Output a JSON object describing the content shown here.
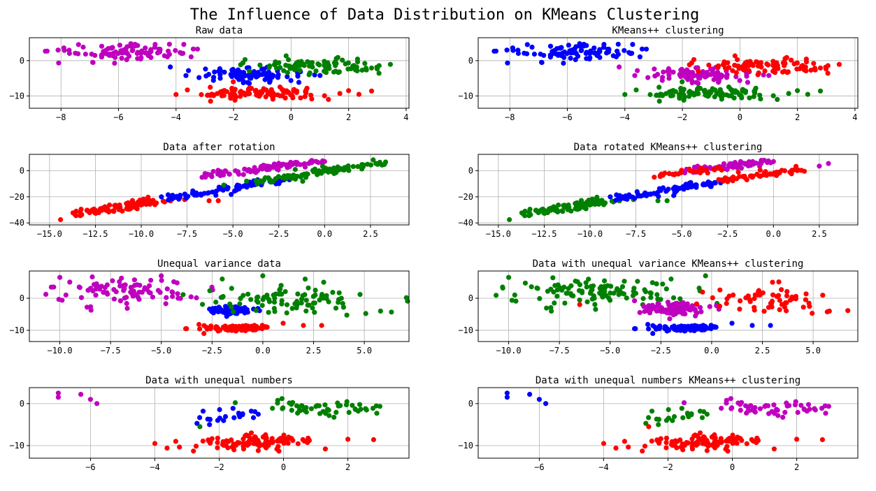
{
  "figure": {
    "title": "The Influence of Data Distribution on KMeans Clustering"
  },
  "colors": {
    "magenta": "#bf00bf",
    "blue": "#0000ff",
    "green": "#008000",
    "red": "#ff0000"
  },
  "chart_data": [
    {
      "type": "scatter",
      "title": "Raw data",
      "xlim": [
        -9.1,
        4.1
      ],
      "ylim": [
        -13.5,
        6.5
      ],
      "xticks": [
        -8,
        -6,
        -4,
        -2,
        0,
        2,
        4
      ],
      "yticks": [
        0,
        -10
      ],
      "grid": true,
      "series": [
        {
          "color": "magenta",
          "center": [
            -5.8,
            2.3
          ],
          "spread": [
            1.2,
            1.3
          ],
          "n": 90,
          "seed": 11,
          "extras": [
            [
              -8.1,
              3.0
            ],
            [
              -7.9,
              3.6
            ],
            [
              -3.8,
              2.0
            ],
            [
              -3.4,
              3.3
            ],
            [
              -4.3,
              1.1
            ]
          ]
        },
        {
          "color": "blue",
          "center": [
            -1.4,
            -3.8
          ],
          "spread": [
            0.9,
            1.0
          ],
          "n": 90,
          "seed": 12,
          "extras": [
            [
              -4.2,
              -1.8
            ],
            [
              -3.2,
              -4.8
            ],
            [
              -2.7,
              -5.6
            ]
          ]
        },
        {
          "color": "green",
          "center": [
            1.0,
            -1.4
          ],
          "spread": [
            1.1,
            1.1
          ],
          "n": 90,
          "seed": 13,
          "extras": [
            [
              -1.6,
              0.3
            ],
            [
              2.8,
              -2.1
            ]
          ]
        },
        {
          "color": "red",
          "center": [
            -1.1,
            -9.3
          ],
          "spread": [
            1.1,
            0.9
          ],
          "n": 100,
          "seed": 14,
          "extras": [
            [
              -4.0,
              -9.6
            ],
            [
              2.0,
              -8.5
            ],
            [
              2.8,
              -8.6
            ],
            [
              1.3,
              -11.0
            ],
            [
              -2.8,
              -11.5
            ]
          ]
        }
      ]
    },
    {
      "type": "scatter",
      "title": "KMeans++ clustering",
      "xlim": [
        -9.1,
        4.1
      ],
      "ylim": [
        -13.5,
        6.5
      ],
      "xticks": [
        -8,
        -6,
        -4,
        -2,
        0,
        2,
        4
      ],
      "yticks": [
        0,
        -10
      ],
      "grid": true,
      "series": [
        {
          "color": "blue",
          "center": [
            -5.8,
            2.3
          ],
          "spread": [
            1.2,
            1.3
          ],
          "n": 90,
          "seed": 11,
          "extras": [
            [
              -8.1,
              3.0
            ],
            [
              -7.9,
              3.6
            ],
            [
              -3.8,
              2.0
            ],
            [
              -3.4,
              3.3
            ],
            [
              -4.3,
              1.1
            ]
          ]
        },
        {
          "color": "magenta",
          "center": [
            -1.4,
            -3.8
          ],
          "spread": [
            0.9,
            1.0
          ],
          "n": 90,
          "seed": 12,
          "extras": [
            [
              -4.2,
              -1.8
            ],
            [
              -3.2,
              -4.8
            ],
            [
              -2.7,
              -5.6
            ]
          ]
        },
        {
          "color": "red",
          "center": [
            1.0,
            -1.4
          ],
          "spread": [
            1.1,
            1.1
          ],
          "n": 90,
          "seed": 13,
          "extras": [
            [
              -1.6,
              0.3
            ],
            [
              2.8,
              -2.1
            ]
          ]
        },
        {
          "color": "green",
          "center": [
            -1.1,
            -9.3
          ],
          "spread": [
            1.1,
            0.9
          ],
          "n": 100,
          "seed": 14,
          "extras": [
            [
              -4.0,
              -9.6
            ],
            [
              2.0,
              -8.5
            ],
            [
              2.8,
              -8.6
            ],
            [
              1.3,
              -11.0
            ],
            [
              -2.8,
              -11.5
            ]
          ]
        }
      ]
    },
    {
      "type": "scatter",
      "title": "Data after rotation",
      "xlim": [
        -16.1,
        4.6
      ],
      "ylim": [
        -41.5,
        12.5
      ],
      "xticks": [
        -15.0,
        -12.5,
        -10.0,
        -7.5,
        -5.0,
        -2.5,
        0.0,
        2.5
      ],
      "yticks": [
        0,
        -20,
        -40
      ],
      "grid": true,
      "series": [
        {
          "color": "red",
          "line": [
            [
              -13.4,
              -33.5
            ],
            [
              -8.6,
              -22.0
            ]
          ],
          "noise": [
            0.4,
            1.4
          ],
          "n": 100,
          "seed": 21,
          "extras": [
            [
              -14.4,
              -37.5
            ],
            [
              -6.3,
              -23.0
            ],
            [
              -5.8,
              -23.0
            ]
          ]
        },
        {
          "color": "blue",
          "line": [
            [
              -8.6,
              -21.0
            ],
            [
              -2.0,
              -6.5
            ]
          ],
          "noise": [
            0.4,
            1.3
          ],
          "n": 90,
          "seed": 22,
          "extras": [
            [
              -8.9,
              -20.0
            ],
            [
              -7.0,
              -17.0
            ]
          ]
        },
        {
          "color": "magenta",
          "line": [
            [
              -6.4,
              -3.5
            ],
            [
              0.0,
              7.5
            ]
          ],
          "noise": [
            0.4,
            1.2
          ],
          "n": 90,
          "seed": 23,
          "extras": [
            [
              -6.5,
              -5.0
            ],
            [
              0.0,
              7.0
            ]
          ]
        },
        {
          "color": "green",
          "line": [
            [
              -3.8,
              -8.5
            ],
            [
              3.0,
              6.0
            ]
          ],
          "noise": [
            0.4,
            1.3
          ],
          "n": 90,
          "seed": 24,
          "extras": [
            [
              2.8,
              5.5
            ],
            [
              -5.5,
              -11.0
            ]
          ]
        }
      ]
    },
    {
      "type": "scatter",
      "title": "Data rotated KMeans++ clustering",
      "xlim": [
        -16.1,
        4.6
      ],
      "ylim": [
        -41.5,
        12.5
      ],
      "xticks": [
        -15.0,
        -12.5,
        -10.0,
        -7.5,
        -5.0,
        -2.5,
        0.0,
        2.5
      ],
      "yticks": [
        0,
        -20,
        -40
      ],
      "grid": true,
      "series": [
        {
          "color": "green",
          "line": [
            [
              -13.4,
              -33.5
            ],
            [
              -8.6,
              -22.0
            ]
          ],
          "noise": [
            0.4,
            1.4
          ],
          "n": 100,
          "seed": 21,
          "extras": [
            [
              -14.4,
              -37.5
            ],
            [
              -6.3,
              -23.0
            ],
            [
              -5.8,
              -23.0
            ]
          ]
        },
        {
          "color": "blue",
          "line": [
            [
              -8.6,
              -21.0
            ],
            [
              -3.0,
              -9.0
            ]
          ],
          "noise": [
            0.4,
            1.3
          ],
          "n": 90,
          "seed": 22,
          "extras": [
            [
              -8.9,
              -20.0
            ],
            [
              -7.0,
              -17.0
            ]
          ]
        },
        {
          "color": "magenta",
          "line": [
            [
              -4.5,
              0.0
            ],
            [
              0.0,
              7.5
            ]
          ],
          "noise": [
            0.4,
            1.2
          ],
          "n": 70,
          "seed": 23,
          "extras": [
            [
              0.0,
              7.0
            ],
            [
              3.0,
              5.5
            ],
            [
              2.5,
              3.5
            ]
          ]
        },
        {
          "color": "red",
          "line": [
            [
              -6.4,
              -3.5
            ],
            [
              -2.5,
              3.0
            ]
          ],
          "noise": [
            0.4,
            1.2
          ],
          "n": 30,
          "seed": 25,
          "extras": [
            [
              -6.5,
              -5.0
            ]
          ]
        },
        {
          "color": "red",
          "line": [
            [
              -3.0,
              -7.5
            ],
            [
              1.5,
              1.0
            ]
          ],
          "noise": [
            0.4,
            1.2
          ],
          "n": 55,
          "seed": 24,
          "extras": []
        }
      ]
    },
    {
      "type": "scatter",
      "title": "Unequal variance data",
      "xlim": [
        -11.5,
        7.2
      ],
      "ylim": [
        -13.5,
        8.5
      ],
      "xticks": [
        -10.0,
        -7.5,
        -5.0,
        -2.5,
        0.0,
        2.5,
        5.0
      ],
      "yticks": [
        0,
        -10
      ],
      "grid": true,
      "series": [
        {
          "color": "magenta",
          "center": [
            -6.5,
            2.3
          ],
          "spread": [
            1.8,
            2.0
          ],
          "n": 90,
          "seed": 31,
          "extras": [
            [
              -10.3,
              3.5
            ],
            [
              -10.0,
              6.5
            ],
            [
              -9.7,
              1.0
            ],
            [
              -5.0,
              7.0
            ]
          ]
        },
        {
          "color": "blue",
          "center": [
            -1.6,
            -3.8
          ],
          "spread": [
            0.6,
            0.6
          ],
          "n": 90,
          "seed": 32,
          "extras": []
        },
        {
          "color": "green",
          "center": [
            1.2,
            -0.8
          ],
          "spread": [
            2.0,
            2.3
          ],
          "n": 90,
          "seed": 33,
          "extras": [
            [
              5.8,
              -4.0
            ],
            [
              0.0,
              7.0
            ],
            [
              -2.0,
              6.0
            ],
            [
              3.0,
              5.0
            ]
          ]
        },
        {
          "color": "red",
          "center": [
            -1.3,
            -9.3
          ],
          "spread": [
            0.8,
            0.5
          ],
          "n": 100,
          "seed": 34,
          "extras": [
            [
              -3.8,
              -9.5
            ],
            [
              1.0,
              -7.8
            ],
            [
              2.0,
              -8.5
            ],
            [
              2.9,
              -8.5
            ],
            [
              -2.9,
              -11.0
            ]
          ]
        }
      ]
    },
    {
      "type": "scatter",
      "title": "Data with unequal variance KMeans++ clustering",
      "xlim": [
        -11.5,
        7.2
      ],
      "ylim": [
        -13.5,
        8.5
      ],
      "xticks": [
        -10.0,
        -7.5,
        -5.0,
        -2.5,
        0.0,
        2.5,
        5.0
      ],
      "yticks": [
        0,
        -10
      ],
      "grid": true,
      "series": [
        {
          "color": "green",
          "center": [
            -5.5,
            2.0
          ],
          "spread": [
            2.2,
            2.0
          ],
          "n": 110,
          "seed": 31,
          "extras": [
            [
              -10.3,
              3.5
            ],
            [
              -10.0,
              6.5
            ],
            [
              -9.7,
              1.0
            ],
            [
              -0.3,
              7.0
            ],
            [
              -2.0,
              6.0
            ]
          ]
        },
        {
          "color": "magenta",
          "center": [
            -1.8,
            -3.3
          ],
          "spread": [
            0.9,
            1.0
          ],
          "n": 110,
          "seed": 32,
          "extras": [
            [
              -3.8,
              -0.8
            ],
            [
              -0.8,
              -5.5
            ]
          ]
        },
        {
          "color": "red",
          "center": [
            2.6,
            -0.8
          ],
          "spread": [
            1.6,
            2.0
          ],
          "n": 60,
          "seed": 33,
          "extras": [
            [
              5.8,
              -4.0
            ],
            [
              3.0,
              5.0
            ],
            [
              -6.5,
              -2.0
            ]
          ]
        },
        {
          "color": "blue",
          "center": [
            -1.3,
            -9.3
          ],
          "spread": [
            0.8,
            0.5
          ],
          "n": 100,
          "seed": 34,
          "extras": [
            [
              -3.8,
              -9.5
            ],
            [
              1.0,
              -7.8
            ],
            [
              2.0,
              -8.5
            ],
            [
              2.9,
              -8.5
            ],
            [
              -2.9,
              -11.0
            ]
          ]
        }
      ]
    },
    {
      "type": "scatter",
      "title": "Data with unequal numbers",
      "xlim": [
        -7.9,
        3.9
      ],
      "ylim": [
        -13.0,
        3.8
      ],
      "xticks": [
        -6,
        -4,
        -2,
        0,
        2
      ],
      "yticks": [
        0,
        -10
      ],
      "grid": true,
      "series": [
        {
          "color": "magenta",
          "points": [
            [
              -7.0,
              2.5
            ],
            [
              -7.0,
              1.5
            ],
            [
              -6.3,
              2.2
            ],
            [
              -6.0,
              1.0
            ],
            [
              -5.8,
              0.0
            ]
          ]
        },
        {
          "color": "blue",
          "center": [
            -1.8,
            -3.0
          ],
          "spread": [
            0.6,
            1.1
          ],
          "n": 20,
          "seed": 41,
          "extras": [
            [
              -2.5,
              -1.8
            ],
            [
              -2.3,
              -5.0
            ],
            [
              -1.0,
              -1.8
            ]
          ]
        },
        {
          "color": "green",
          "center": [
            1.2,
            -1.2
          ],
          "spread": [
            0.9,
            1.0
          ],
          "n": 50,
          "seed": 42,
          "extras": [
            [
              -2.6,
              -5.5
            ],
            [
              -1.5,
              0.2
            ],
            [
              2.9,
              -2.3
            ]
          ]
        },
        {
          "color": "red",
          "center": [
            -1.0,
            -9.3
          ],
          "spread": [
            0.9,
            0.9
          ],
          "n": 100,
          "seed": 43,
          "extras": [
            [
              -4.0,
              -9.5
            ],
            [
              2.0,
              -8.5
            ],
            [
              2.8,
              -8.6
            ],
            [
              1.3,
              -10.8
            ],
            [
              -2.8,
              -11.3
            ]
          ]
        }
      ]
    },
    {
      "type": "scatter",
      "title": "Data with unequal numbers KMeans++ clustering",
      "xlim": [
        -7.9,
        3.9
      ],
      "ylim": [
        -13.0,
        3.8
      ],
      "xticks": [
        -6,
        -4,
        -2,
        0,
        2
      ],
      "yticks": [
        0,
        -10
      ],
      "grid": true,
      "series": [
        {
          "color": "blue",
          "points": [
            [
              -7.0,
              2.5
            ],
            [
              -7.0,
              1.5
            ],
            [
              -6.3,
              2.2
            ],
            [
              -6.0,
              1.0
            ],
            [
              -5.8,
              0.0
            ]
          ]
        },
        {
          "color": "green",
          "center": [
            -1.8,
            -3.0
          ],
          "spread": [
            0.6,
            1.1
          ],
          "n": 20,
          "seed": 41,
          "extras": [
            [
              -2.5,
              -1.8
            ],
            [
              -2.3,
              -5.0
            ],
            [
              -1.0,
              -1.8
            ]
          ]
        },
        {
          "color": "magenta",
          "center": [
            1.2,
            -1.2
          ],
          "spread": [
            0.9,
            1.0
          ],
          "n": 50,
          "seed": 42,
          "extras": [
            [
              -1.5,
              0.2
            ],
            [
              2.9,
              -2.3
            ]
          ]
        },
        {
          "color": "red",
          "center": [
            -1.0,
            -9.3
          ],
          "spread": [
            0.9,
            0.9
          ],
          "n": 100,
          "seed": 43,
          "extras": [
            [
              -4.0,
              -9.5
            ],
            [
              2.0,
              -8.5
            ],
            [
              2.8,
              -8.6
            ],
            [
              1.3,
              -10.8
            ],
            [
              -2.8,
              -11.3
            ],
            [
              -2.6,
              -5.5
            ]
          ]
        }
      ]
    }
  ]
}
